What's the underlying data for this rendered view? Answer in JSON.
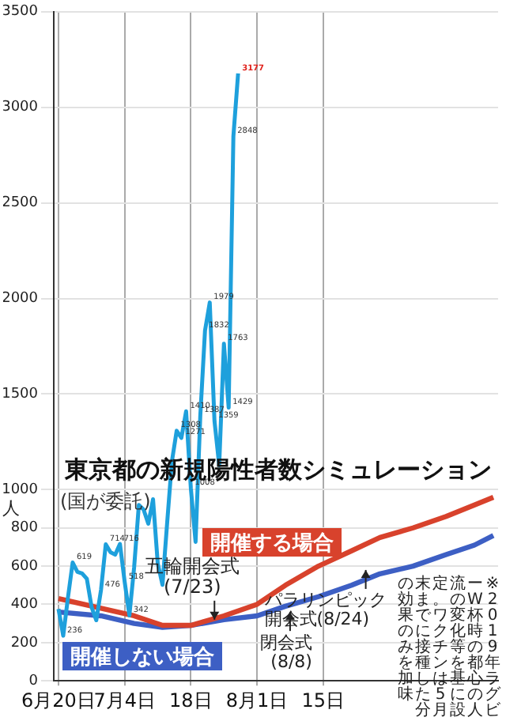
{
  "chart_data": {
    "type": "line",
    "title": "東京都の新規陽性者数シミュレーション",
    "subtitle": "(国が委託)",
    "ylabel": "人",
    "xlim": [
      "--06-19",
      "--09-21"
    ],
    "xticks": [
      {
        "value": "--06-20",
        "label": "6月20日"
      },
      {
        "value": "--07-04",
        "label": "7月4日"
      },
      {
        "value": "--07-18",
        "label": "18日"
      },
      {
        "value": "--08-01",
        "label": "8月1日"
      },
      {
        "value": "--08-15",
        "label": "15日"
      }
    ],
    "ylim": [
      0,
      3500
    ],
    "yticks": [
      0,
      200,
      400,
      600,
      800,
      1000,
      1500,
      2000,
      2500,
      3000,
      3500
    ],
    "grid": true,
    "legend": false,
    "series": [
      {
        "color": "#1ea0dc",
        "x": [
          "--06-20",
          "--06-21",
          "--06-22",
          "--06-23",
          "--06-24",
          "--06-25",
          "--06-26",
          "--06-27",
          "--06-28",
          "--06-29",
          "--06-30",
          "--07-01",
          "--07-02",
          "--07-03",
          "--07-04",
          "--07-05",
          "--07-06",
          "--07-07",
          "--07-08",
          "--07-09",
          "--07-10",
          "--07-11",
          "--07-12",
          "--07-13",
          "--07-14",
          "--07-15",
          "--07-16",
          "--07-17",
          "--07-18",
          "--07-19",
          "--07-20",
          "--07-21",
          "--07-22",
          "--07-23",
          "--07-24",
          "--07-25",
          "--07-26",
          "--07-27",
          "--07-28"
        ],
        "values": [
          376,
          236,
          435,
          619,
          570,
          562,
          534,
          386,
          317,
          476,
          714,
          673,
          660,
          716,
          518,
          342,
          593,
          920,
          896,
          822,
          950,
          614,
          502,
          830,
          1149,
          1308,
          1271,
          1410,
          1008,
          727,
          1387,
          1832,
          1979,
          1359,
          1128,
          1763,
          1429,
          2848,
          3177
        ],
        "value_labels": [
          null,
          "236",
          null,
          "619",
          null,
          null,
          null,
          null,
          null,
          "476",
          "714",
          null,
          null,
          "716",
          "518",
          "342",
          null,
          null,
          null,
          null,
          null,
          null,
          null,
          null,
          null,
          "1308",
          "1271",
          "1410",
          "1008",
          null,
          "1387",
          "1832",
          "1979",
          "1359",
          null,
          "1763",
          "1429",
          "2848",
          "3177"
        ]
      },
      {
        "name": "開催する場合",
        "color": "#d8422c",
        "x": [
          "--06-20",
          "--06-29",
          "--07-06",
          "--07-12",
          "--07-18",
          "--07-25",
          "--08-01",
          "--08-07",
          "--08-14",
          "--08-21",
          "--08-27",
          "--09-03",
          "--09-10",
          "--09-16",
          "--09-20"
        ],
        "values": [
          430,
          380,
          340,
          290,
          290,
          340,
          400,
          500,
          600,
          680,
          750,
          800,
          860,
          920,
          960
        ]
      },
      {
        "name": "開催しない場合",
        "color": "#3d5fc4",
        "x": [
          "--06-20",
          "--06-29",
          "--07-06",
          "--07-12",
          "--07-18",
          "--07-25",
          "--08-01",
          "--08-07",
          "--08-14",
          "--08-21",
          "--08-27",
          "--09-03",
          "--09-10",
          "--09-16",
          "--09-20"
        ],
        "values": [
          360,
          340,
          300,
          280,
          290,
          320,
          340,
          390,
          440,
          500,
          560,
          600,
          660,
          710,
          760
        ]
      }
    ],
    "annotations": [
      {
        "text": "五輪開会式\n(7/23)",
        "x": "--07-23",
        "y": 320
      },
      {
        "text": "閉会式\n(8/8)",
        "x": "--08-08",
        "y": 360
      },
      {
        "text": "パラリンピック開会式(8/24)",
        "x": "--08-24",
        "y": 580
      },
      "※2019年ラグビーW杯時の都心の人流の変化等を基に設定。ワクチンは5月末までに接種した分の効果のみを加味"
    ]
  }
}
